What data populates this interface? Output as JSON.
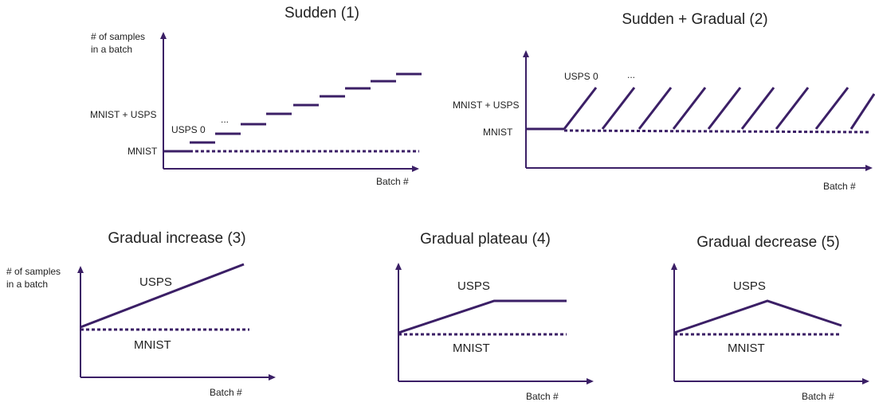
{
  "colors": {
    "line": "#3b1f66",
    "axis": "#3b1f66",
    "text": "#222222"
  },
  "panels": {
    "p1": {
      "title": "Sudden (1)",
      "ylabel_1": "# of samples",
      "ylabel_2": "in a batch",
      "xlabel": "Batch #",
      "label_mixed": "MNIST + USPS",
      "label_base": "MNIST",
      "label_first": "USPS 0",
      "ellipsis": "..."
    },
    "p2": {
      "title": "Sudden + Gradual (2)",
      "xlabel": "Batch #",
      "label_mixed": "MNIST + USPS",
      "label_base": "MNIST",
      "label_first": "USPS 0",
      "ellipsis": "..."
    },
    "p3": {
      "title": "Gradual increase (3)",
      "ylabel_1": "# of samples",
      "ylabel_2": "in a batch",
      "xlabel": "Batch #",
      "label_upper": "USPS",
      "label_base": "MNIST"
    },
    "p4": {
      "title": "Gradual plateau (4)",
      "xlabel": "Batch #",
      "label_upper": "USPS",
      "label_base": "MNIST"
    },
    "p5": {
      "title": "Gradual decrease (5)",
      "xlabel": "Batch #",
      "label_upper": "USPS",
      "label_base": "MNIST"
    }
  }
}
